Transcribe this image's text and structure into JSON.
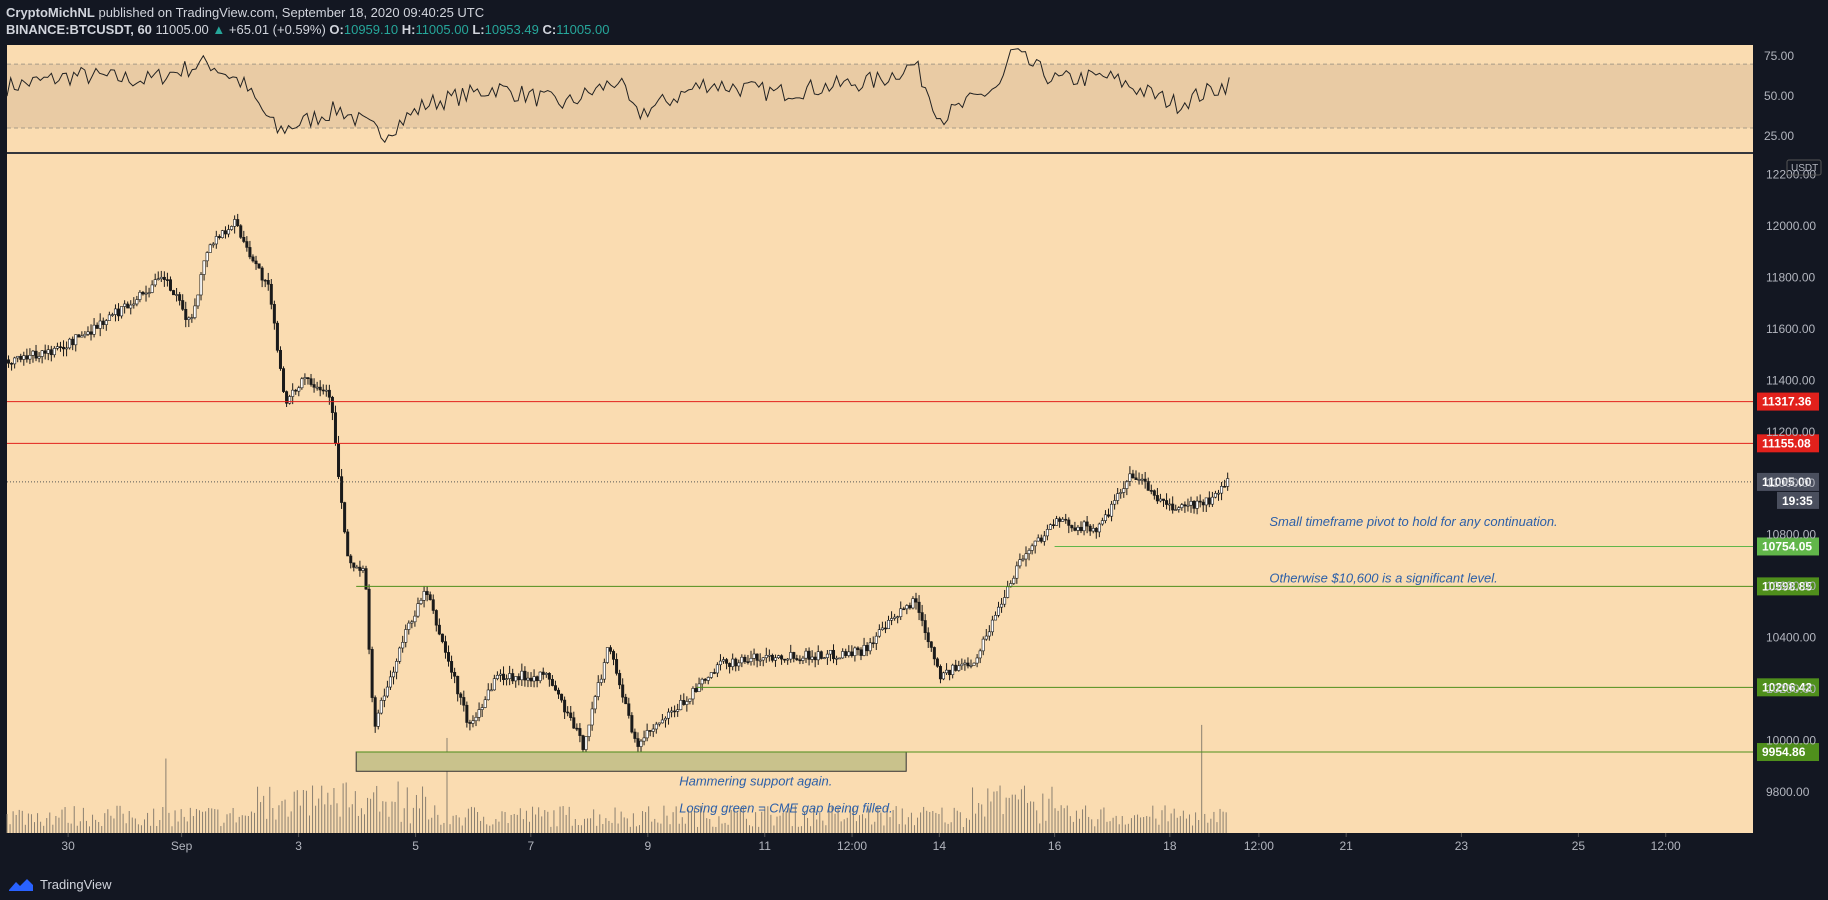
{
  "header": {
    "author": "CryptoMichNL",
    "published": "published on TradingView.com, September 18, 2020 09:40:25 UTC",
    "symbol": "BINANCE:BTCUSDT, 60",
    "last": "11005.00",
    "change": "+65.01 (+0.59%)",
    "o_label": "O:",
    "o": "10959.10",
    "h_label": "H:",
    "h": "11005.00",
    "l_label": "L:",
    "l": "10953.49",
    "c_label": "C:",
    "c": "11005.00",
    "up_arrow_icon": "triangle-up-icon"
  },
  "footer": {
    "brand": "TradingView",
    "logo_icon": "tradingview-logo-icon"
  },
  "colors": {
    "background": "#131722",
    "pane": "#fadcb1",
    "rsi_band": "#e9cba4",
    "candle": "#1a1a1a",
    "volume": "#8a7f70",
    "resistance": "#e2211c",
    "support": "#4f8f1c",
    "pivot": "#61b64a",
    "support_zone": "#c9c28c",
    "annotation": "#2c5fa8",
    "last_price_label": "#4a4f5e"
  },
  "chart_data": [
    {
      "type": "line",
      "name_id": "rsi",
      "ylim": [
        15,
        82
      ],
      "ticks": [
        "75.00",
        "50.00",
        "25.00"
      ],
      "band": [
        30,
        70
      ],
      "keypoints": [
        {
          "x": 0,
          "y": 56
        },
        {
          "x": 0.04,
          "y": 63
        },
        {
          "x": 0.08,
          "y": 60
        },
        {
          "x": 0.115,
          "y": 71
        },
        {
          "x": 0.135,
          "y": 58
        },
        {
          "x": 0.155,
          "y": 28
        },
        {
          "x": 0.19,
          "y": 42
        },
        {
          "x": 0.215,
          "y": 26
        },
        {
          "x": 0.24,
          "y": 45
        },
        {
          "x": 0.28,
          "y": 55
        },
        {
          "x": 0.32,
          "y": 45
        },
        {
          "x": 0.35,
          "y": 60
        },
        {
          "x": 0.36,
          "y": 38
        },
        {
          "x": 0.4,
          "y": 58
        },
        {
          "x": 0.44,
          "y": 52
        },
        {
          "x": 0.5,
          "y": 60
        },
        {
          "x": 0.52,
          "y": 70
        },
        {
          "x": 0.535,
          "y": 36
        },
        {
          "x": 0.57,
          "y": 58
        },
        {
          "x": 0.575,
          "y": 78
        },
        {
          "x": 0.6,
          "y": 60
        },
        {
          "x": 0.63,
          "y": 62
        },
        {
          "x": 0.67,
          "y": 45
        },
        {
          "x": 0.7,
          "y": 58
        }
      ]
    },
    {
      "type": "candlestick",
      "name_id": "btcusdt-price",
      "currency": "USDT",
      "ylim": [
        9640,
        12280
      ],
      "ticks": [
        "12200.00",
        "12000.00",
        "11800.00",
        "11600.00",
        "11400.00",
        "11200.00",
        "11000.00",
        "10800.00",
        "10600.00",
        "10400.00",
        "10200.00",
        "10000.00",
        "9800.00"
      ],
      "x_ticks": [
        "30",
        "Sep",
        "3",
        "5",
        "7",
        "9",
        "11",
        "12:00",
        "14",
        "16",
        "18",
        "12:00",
        "21",
        "23",
        "25",
        "12:00"
      ],
      "keypoints": [
        {
          "x": 0,
          "y": 11480
        },
        {
          "x": 0.03,
          "y": 11520
        },
        {
          "x": 0.06,
          "y": 11650
        },
        {
          "x": 0.09,
          "y": 11800
        },
        {
          "x": 0.105,
          "y": 11620
        },
        {
          "x": 0.115,
          "y": 11920
        },
        {
          "x": 0.13,
          "y": 12020
        },
        {
          "x": 0.15,
          "y": 11750
        },
        {
          "x": 0.16,
          "y": 11300
        },
        {
          "x": 0.17,
          "y": 11420
        },
        {
          "x": 0.185,
          "y": 11350
        },
        {
          "x": 0.195,
          "y": 10700
        },
        {
          "x": 0.205,
          "y": 10650
        },
        {
          "x": 0.21,
          "y": 10050
        },
        {
          "x": 0.23,
          "y": 10450
        },
        {
          "x": 0.24,
          "y": 10580
        },
        {
          "x": 0.265,
          "y": 10050
        },
        {
          "x": 0.28,
          "y": 10250
        },
        {
          "x": 0.31,
          "y": 10250
        },
        {
          "x": 0.33,
          "y": 9980
        },
        {
          "x": 0.345,
          "y": 10380
        },
        {
          "x": 0.36,
          "y": 9980
        },
        {
          "x": 0.38,
          "y": 10100
        },
        {
          "x": 0.41,
          "y": 10300
        },
        {
          "x": 0.44,
          "y": 10330
        },
        {
          "x": 0.47,
          "y": 10330
        },
        {
          "x": 0.49,
          "y": 10350
        },
        {
          "x": 0.52,
          "y": 10550
        },
        {
          "x": 0.535,
          "y": 10250
        },
        {
          "x": 0.555,
          "y": 10320
        },
        {
          "x": 0.58,
          "y": 10700
        },
        {
          "x": 0.6,
          "y": 10850
        },
        {
          "x": 0.625,
          "y": 10820
        },
        {
          "x": 0.645,
          "y": 11040
        },
        {
          "x": 0.665,
          "y": 10900
        },
        {
          "x": 0.69,
          "y": 10930
        },
        {
          "x": 0.7,
          "y": 11005
        }
      ],
      "levels": [
        {
          "price": 11317.36,
          "label": "11317.36",
          "kind": "resistance"
        },
        {
          "price": 11155.08,
          "label": "11155.08",
          "kind": "resistance"
        },
        {
          "price": 10754.05,
          "label": "10754.05",
          "kind": "pivot"
        },
        {
          "price": 10598.85,
          "label": "10598.85",
          "kind": "support"
        },
        {
          "price": 10206.42,
          "label": "10206.42",
          "kind": "support"
        },
        {
          "price": 9954.86,
          "label": "9954.86",
          "kind": "support"
        }
      ],
      "last_price": {
        "price": 11005.0,
        "label": "11005.00",
        "countdown": "19:35"
      },
      "support_zone": [
        9880,
        9955
      ],
      "annotations": [
        "Small timeframe pivot to hold for any continuation.",
        "Otherwise $10,600 is a significant level.",
        "Hammering support again.",
        "Losing green = CME gap being filled."
      ]
    }
  ]
}
